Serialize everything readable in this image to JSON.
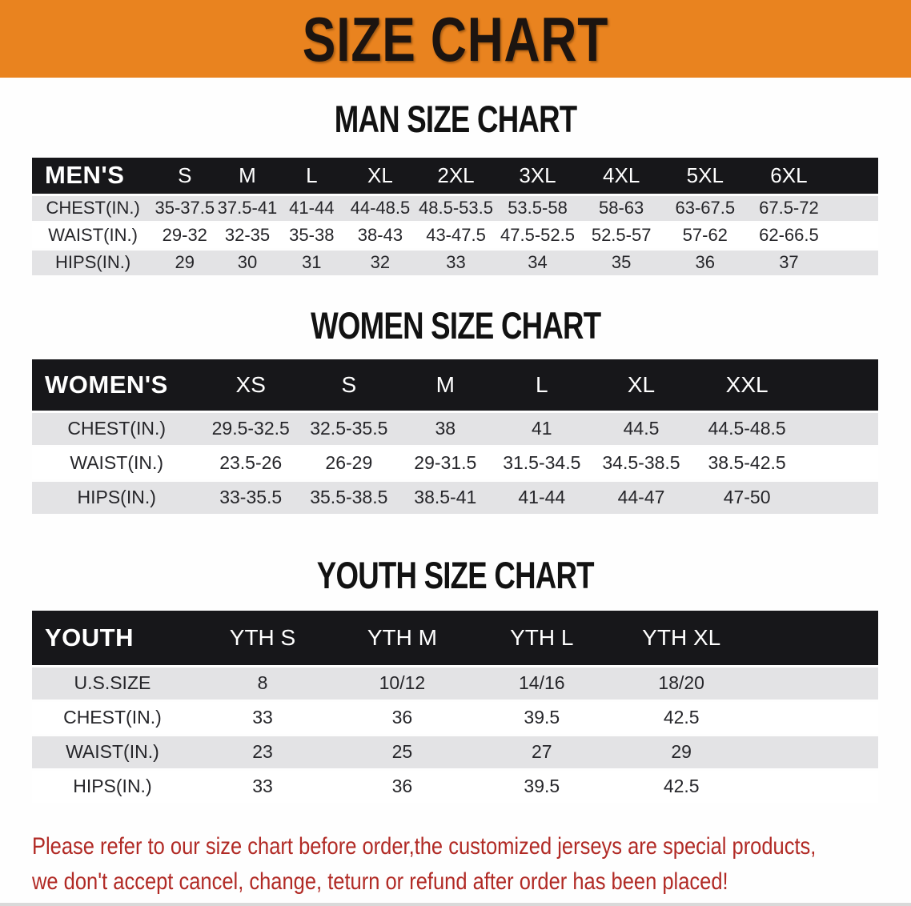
{
  "banner": {
    "title": "SIZE CHART",
    "bg_color": "#e9831f",
    "text_color": "#1c1410"
  },
  "sections": [
    {
      "heading": "MAN SIZE CHART",
      "table": {
        "header_label": "MEN'S",
        "size_columns": [
          "S",
          "M",
          "L",
          "XL",
          "2XL",
          "3XL",
          "4XL",
          "5XL",
          "6XL"
        ],
        "rows": [
          {
            "label": "CHEST(IN.)",
            "values": [
              "35-37.5",
              "37.5-41",
              "41-44",
              "44-48.5",
              "48.5-53.5",
              "53.5-58",
              "58-63",
              "63-67.5",
              "67.5-72"
            ]
          },
          {
            "label": "WAIST(IN.)",
            "values": [
              "29-32",
              "32-35",
              "35-38",
              "38-43",
              "43-47.5",
              "47.5-52.5",
              "52.5-57",
              "57-62",
              "62-66.5"
            ]
          },
          {
            "label": "HIPS(IN.)",
            "values": [
              "29",
              "30",
              "31",
              "32",
              "33",
              "34",
              "35",
              "36",
              "37"
            ]
          }
        ]
      }
    },
    {
      "heading": "WOMEN SIZE CHART",
      "table": {
        "header_label": "WOMEN'S",
        "size_columns": [
          "XS",
          "S",
          "M",
          "L",
          "XL",
          "XXL"
        ],
        "rows": [
          {
            "label": "CHEST(IN.)",
            "values": [
              "29.5-32.5",
              "32.5-35.5",
              "38",
              "41",
              "44.5",
              "44.5-48.5"
            ]
          },
          {
            "label": "WAIST(IN.)",
            "values": [
              "23.5-26",
              "26-29",
              "29-31.5",
              "31.5-34.5",
              "34.5-38.5",
              "38.5-42.5"
            ]
          },
          {
            "label": "HIPS(IN.)",
            "values": [
              "33-35.5",
              "35.5-38.5",
              "38.5-41",
              "41-44",
              "44-47",
              "47-50"
            ]
          }
        ]
      }
    },
    {
      "heading": "YOUTH SIZE CHART",
      "table": {
        "header_label": "YOUTH",
        "size_columns": [
          "YTH S",
          "YTH M",
          "YTH L",
          "YTH XL"
        ],
        "rows": [
          {
            "label": "U.S.SIZE",
            "values": [
              "8",
              "10/12",
              "14/16",
              "18/20"
            ]
          },
          {
            "label": "CHEST(IN.)",
            "values": [
              "33",
              "36",
              "39.5",
              "42.5"
            ]
          },
          {
            "label": "WAIST(IN.)",
            "values": [
              "23",
              "25",
              "27",
              "29"
            ]
          },
          {
            "label": "HIPS(IN.)",
            "values": [
              "33",
              "36",
              "39.5",
              "42.5"
            ]
          }
        ]
      }
    }
  ],
  "disclaimer": {
    "lines": [
      "Please refer to our size chart before order,the customized jerseys are special products,",
      "we don't accept cancel, change, teturn or refund after order has been placed!"
    ],
    "color": "#b12a25"
  },
  "colors": {
    "header_band": "#17171a",
    "row_shade": "#e3e3e5"
  }
}
